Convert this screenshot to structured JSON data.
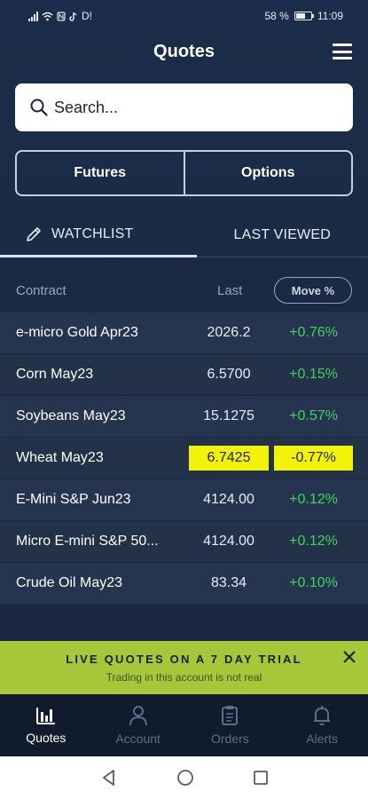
{
  "status_bar": {
    "left_text": "D!",
    "battery_percent": "58 %",
    "time": "11:09"
  },
  "header": {
    "title": "Quotes",
    "menu_icon": "hamburger-menu-icon"
  },
  "search": {
    "placeholder": "Search..."
  },
  "segmented": {
    "futures_label": "Futures",
    "options_label": "Options"
  },
  "tabs": {
    "watchlist_label": "WATCHLIST",
    "last_viewed_label": "LAST VIEWED",
    "active": "watchlist"
  },
  "table": {
    "columns": {
      "contract": "Contract",
      "last": "Last",
      "move": "Move %"
    },
    "rows": [
      {
        "contract": "e-micro Gold Apr23",
        "last": "2026.2",
        "move": "+0.76%",
        "highlight": false
      },
      {
        "contract": "Corn May23",
        "last": "6.5700",
        "move": "+0.15%",
        "highlight": false
      },
      {
        "contract": "Soybeans May23",
        "last": "15.1275",
        "move": "+0.57%",
        "highlight": false
      },
      {
        "contract": "Wheat May23",
        "last": "6.7425",
        "move": "-0.77%",
        "highlight": true
      },
      {
        "contract": "E-Mini S&P Jun23",
        "last": "4124.00",
        "move": "+0.12%",
        "highlight": false
      },
      {
        "contract": "Micro E-mini S&P 50...",
        "last": "4124.00",
        "move": "+0.12%",
        "highlight": false
      },
      {
        "contract": "Crude Oil May23",
        "last": "83.34",
        "move": "+0.10%",
        "highlight": false
      }
    ]
  },
  "trial_banner": {
    "title": "LIVE QUOTES ON A 7 DAY TRIAL",
    "subtitle": "Trading in this account is not real"
  },
  "bottom_nav": {
    "items": [
      {
        "label": "Quotes",
        "icon": "bar-chart-icon",
        "active": true
      },
      {
        "label": "Account",
        "icon": "person-icon",
        "active": false
      },
      {
        "label": "Orders",
        "icon": "clipboard-icon",
        "active": false
      },
      {
        "label": "Alerts",
        "icon": "bell-icon",
        "active": false
      }
    ]
  },
  "colors": {
    "background": "#1b2a45",
    "positive": "#3fd45a",
    "highlight": "#f2f20b",
    "trial_banner": "#a5c83a"
  }
}
